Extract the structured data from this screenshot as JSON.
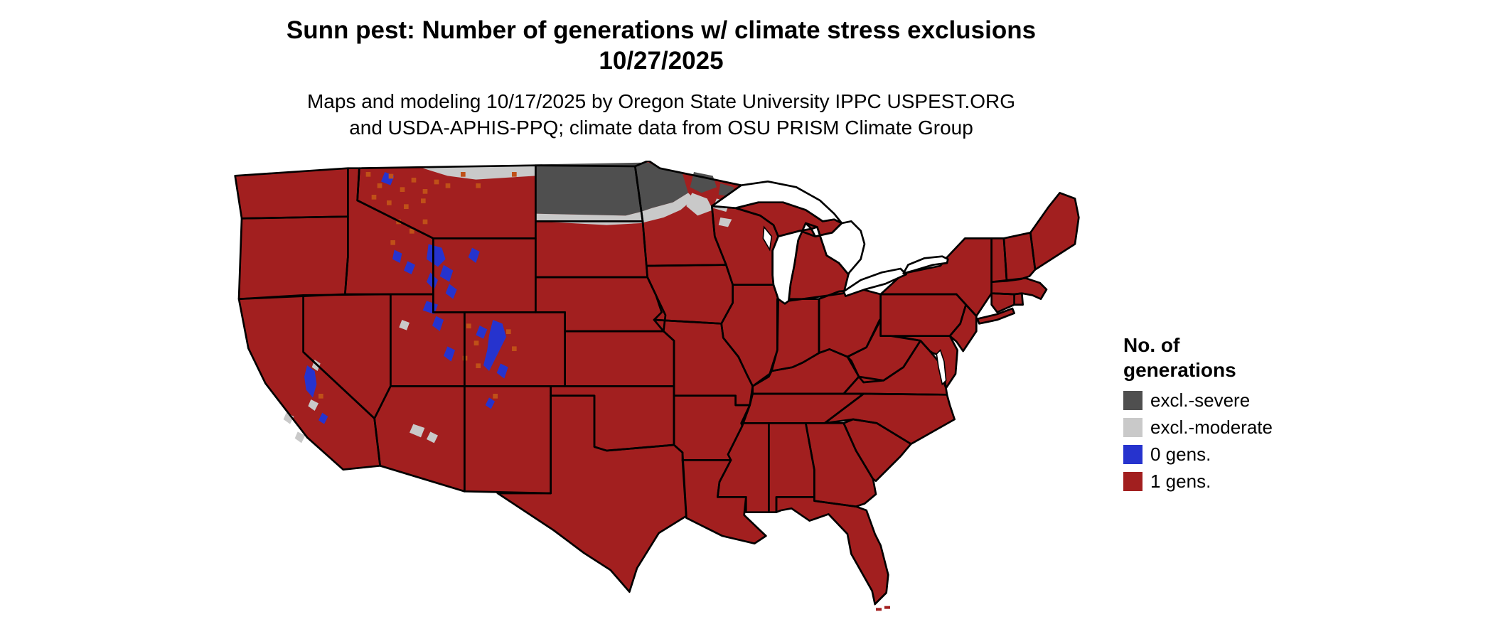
{
  "title": {
    "line1": "Sunn pest: Number of generations w/ climate stress exclusions",
    "line2": "10/27/2025"
  },
  "subtitle": "Maps and modeling 10/17/2025 by Oregon State University IPPC USPEST.ORG and USDA-APHIS-PPQ; climate data from OSU PRISM Climate Group",
  "legend": {
    "title": "No. of generations",
    "items": [
      {
        "label": "excl.-severe",
        "color": "#4F4F4F"
      },
      {
        "label": "excl.-moderate",
        "color": "#C9C9C9"
      },
      {
        "label": "0 gens.",
        "color": "#2633CE"
      },
      {
        "label": "1 gens.",
        "color": "#A21F1F"
      }
    ]
  },
  "colors": {
    "map-red": "#A21F1F",
    "excl-severe": "#4F4F4F",
    "excl-moderate": "#C9C9C9",
    "gens0-blue": "#2633CE",
    "speckle-orange": "#C05018",
    "border": "#000000",
    "water": "#FFFFFF"
  }
}
